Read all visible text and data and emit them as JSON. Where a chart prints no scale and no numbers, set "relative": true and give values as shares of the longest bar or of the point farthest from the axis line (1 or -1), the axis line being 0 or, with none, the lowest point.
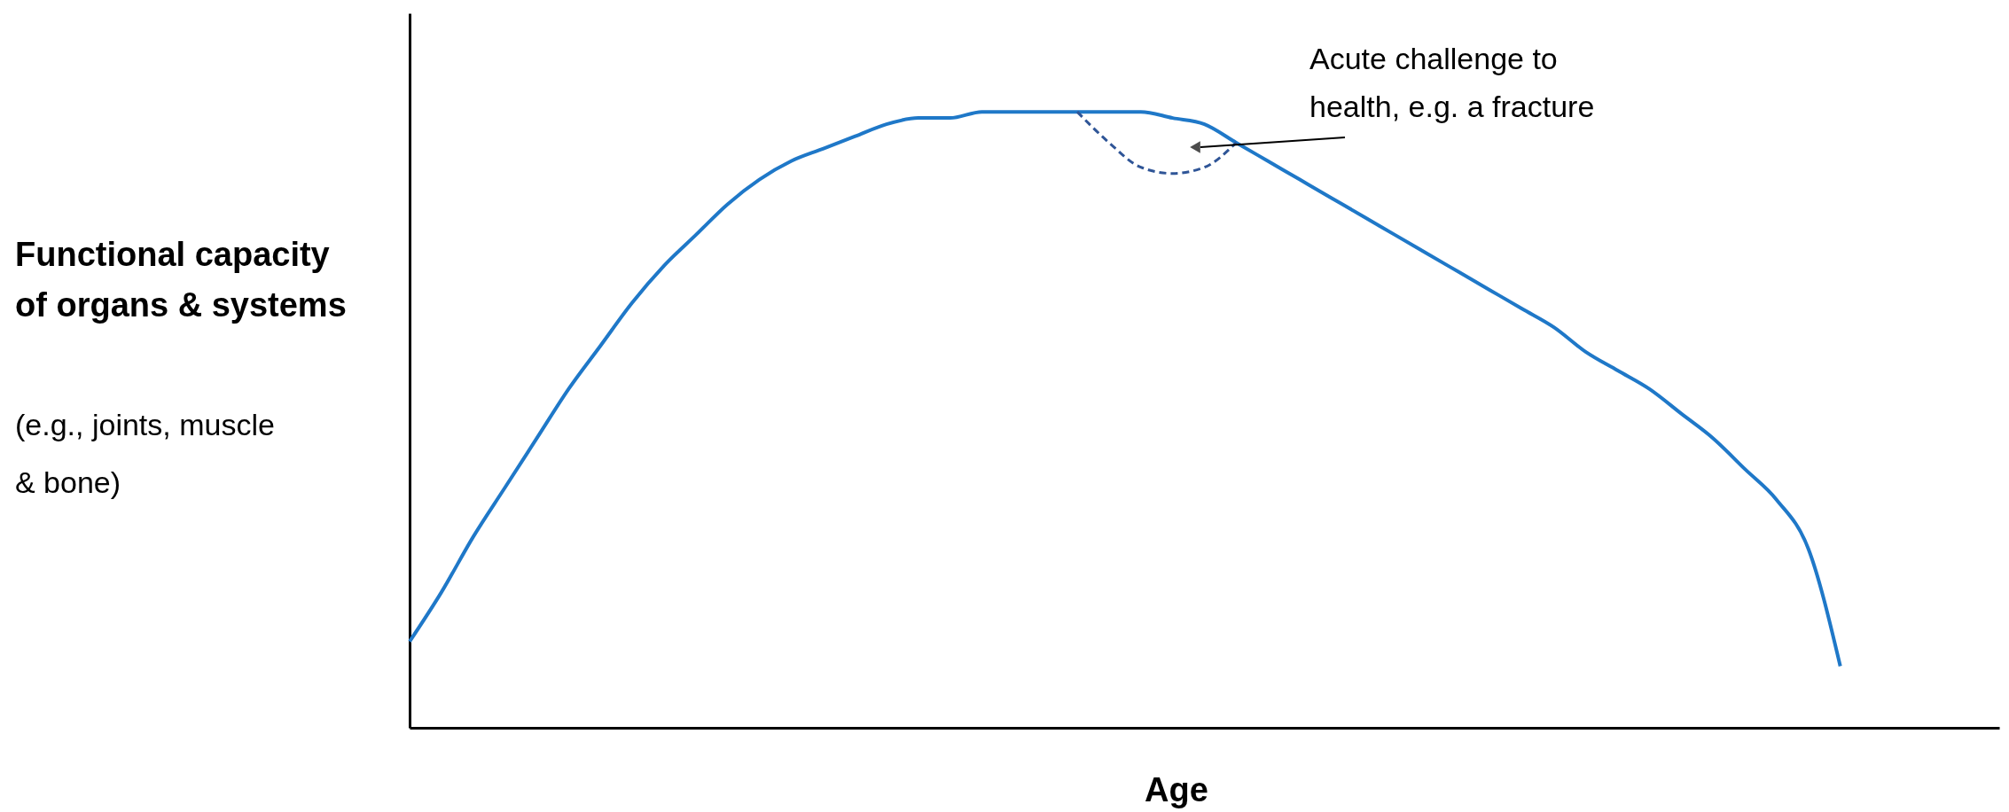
{
  "chart_data": {
    "type": "line",
    "relative": true,
    "xlabel": "Age",
    "ylabel": "Functional capacity of organs & systems",
    "annotations": [
      "Acute challenge to health, e.g. a fracture",
      "(e.g., joints, muscle & bone)"
    ],
    "categories": [
      null,
      null,
      null,
      null,
      null,
      null,
      null,
      null,
      null,
      null,
      null,
      null,
      null,
      null,
      null,
      null,
      null,
      null,
      null,
      null,
      null,
      null,
      null,
      null,
      null,
      null,
      null,
      null,
      null,
      null,
      null,
      null,
      null,
      null,
      null,
      null,
      null,
      null,
      null,
      null,
      null,
      null,
      null,
      null,
      null,
      null,
      null,
      null,
      null,
      null,
      null
    ],
    "series": [
      {
        "color": "#1f78c8",
        "line_style": "solid",
        "values": [
          0.14,
          0.22,
          0.31,
          0.39,
          0.47,
          0.55,
          0.62,
          0.69,
          0.75,
          0.8,
          0.85,
          0.89,
          0.92,
          0.94,
          0.96,
          0.98,
          0.99,
          0.99,
          1.0,
          1.0,
          1.0,
          1.0,
          1.0,
          1.0,
          0.99,
          0.98,
          0.95,
          0.92,
          0.89,
          0.86,
          0.83,
          0.8,
          0.77,
          0.74,
          0.71,
          0.68,
          0.65,
          0.61,
          0.58,
          0.55,
          0.51,
          0.47,
          0.42,
          0.37,
          0.29,
          0.1,
          null,
          null,
          null,
          null,
          null
        ]
      },
      {
        "color": "#2f5597",
        "line_style": "dashed",
        "values": [
          null,
          null,
          null,
          null,
          null,
          null,
          null,
          null,
          null,
          null,
          null,
          null,
          null,
          null,
          null,
          null,
          null,
          null,
          null,
          null,
          null,
          1.0,
          0.95,
          0.91,
          0.9,
          0.91,
          0.95,
          null,
          null,
          null,
          null,
          null,
          null,
          null,
          null,
          null,
          null,
          null,
          null,
          null,
          null,
          null,
          null,
          null,
          null,
          null,
          null,
          null,
          null,
          null,
          null
        ]
      }
    ],
    "marker": "none"
  }
}
